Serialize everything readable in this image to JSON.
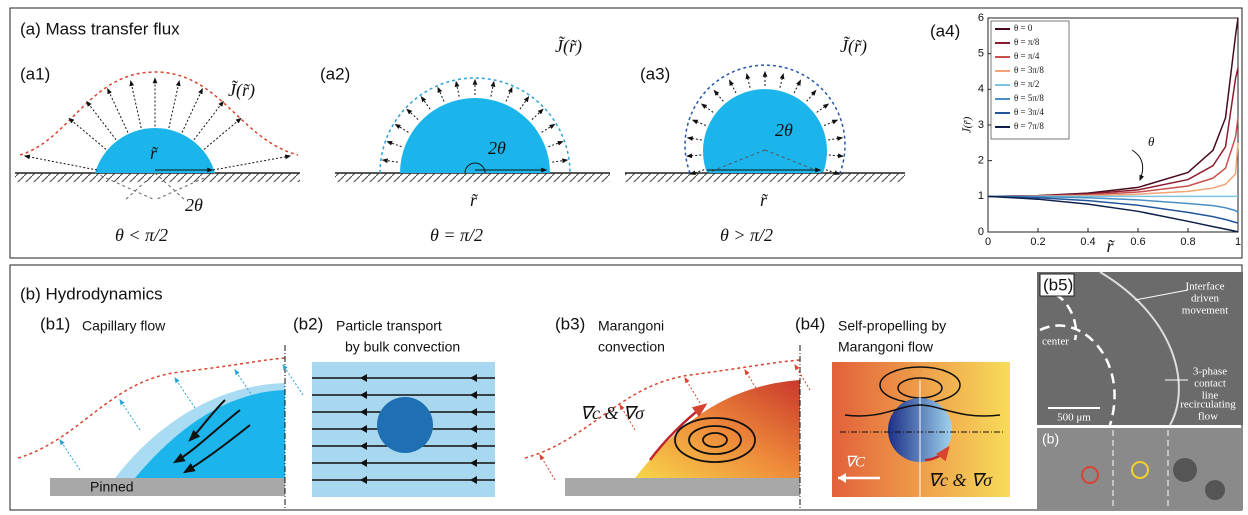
{
  "figure": {
    "panel_a": {
      "title": "(a) Mass transfer flux",
      "a1": {
        "label": "(a1)",
        "flux": "J̃(r̃)",
        "radius": "r̃",
        "angle": "2θ",
        "condition": "θ < π/2"
      },
      "a2": {
        "label": "(a2)",
        "flux": "J̃(r̃)",
        "radius": "r̃",
        "angle": "2θ",
        "condition": "θ = π/2"
      },
      "a3": {
        "label": "(a3)",
        "flux": "J̃(r̃)",
        "radius": "r̃",
        "angle": "2θ",
        "condition": "θ > π/2"
      },
      "a4": {
        "label": "(a4)"
      }
    },
    "panel_b": {
      "title": "(b)  Hydrodynamics",
      "b1": {
        "label": "(b1)",
        "caption": "Capillary flow",
        "substrate": "Pinned"
      },
      "b2": {
        "label": "(b2)",
        "caption": [
          "Particle transport",
          "by bulk convection"
        ]
      },
      "b3": {
        "label": "(b3)",
        "caption": [
          "Marangoni",
          "convection"
        ],
        "gradient": "∇c & ∇σ"
      },
      "b4": {
        "label": "(b4)",
        "caption": [
          "Self-propelling by",
          "Marangoni flow"
        ],
        "external": "∇C",
        "gradient": "∇c & ∇σ"
      },
      "b5": {
        "label": "(b5)",
        "annotations": [
          "Interface",
          "driven",
          "movement",
          "center",
          "3-phase",
          "contact",
          "line",
          "recirculating",
          "flow",
          "500 μm"
        ],
        "inset": "(b)"
      }
    }
  },
  "chart_data": {
    "type": "line",
    "x_label": "r̃",
    "y_label": "J̃(r̃)",
    "annotation": "θ",
    "x": [
      0,
      0.2,
      0.4,
      0.6,
      0.8,
      0.9,
      0.95,
      0.99,
      1
    ],
    "series": [
      {
        "name": "θ = 0",
        "color": "#4a0a1e",
        "values": [
          1,
          1.02,
          1.09,
          1.25,
          1.67,
          2.29,
          3.2,
          5.5,
          6
        ]
      },
      {
        "name": "θ = π/8",
        "color": "#8e1b2e",
        "values": [
          1,
          1.015,
          1.07,
          1.18,
          1.47,
          1.86,
          2.39,
          4.3,
          4.6
        ]
      },
      {
        "name": "θ = π/4",
        "color": "#c9514d",
        "values": [
          1,
          1.01,
          1.04,
          1.12,
          1.29,
          1.51,
          1.79,
          2.66,
          3.2
        ]
      },
      {
        "name": "θ = 3π/8",
        "color": "#f2a476",
        "values": [
          1,
          1.005,
          1.02,
          1.06,
          1.14,
          1.23,
          1.34,
          1.63,
          2.5
        ]
      },
      {
        "name": "θ = π/2",
        "color": "#7cc4e0",
        "values": [
          1,
          1,
          1,
          1,
          1,
          1,
          1,
          1,
          1
        ]
      },
      {
        "name": "θ = 5π/8",
        "color": "#4a8fc4",
        "values": [
          1,
          0.99,
          0.96,
          0.9,
          0.8,
          0.74,
          0.68,
          0.6,
          0.55
        ]
      },
      {
        "name": "θ = 3π/4",
        "color": "#23559a",
        "values": [
          1,
          0.96,
          0.88,
          0.75,
          0.55,
          0.43,
          0.35,
          0.27,
          0.25
        ]
      },
      {
        "name": "θ = 7π/8",
        "color": "#0f1f4a",
        "values": [
          1,
          0.92,
          0.78,
          0.58,
          0.3,
          0.15,
          0.08,
          0.02,
          0
        ]
      }
    ],
    "xlim": [
      0,
      1
    ],
    "xticks": [
      0,
      0.2,
      0.4,
      0.6,
      0.8,
      1
    ],
    "ylim": [
      0,
      6
    ],
    "yticks": [
      0,
      1,
      2,
      3,
      4,
      5,
      6
    ],
    "legend": "upper-left"
  }
}
